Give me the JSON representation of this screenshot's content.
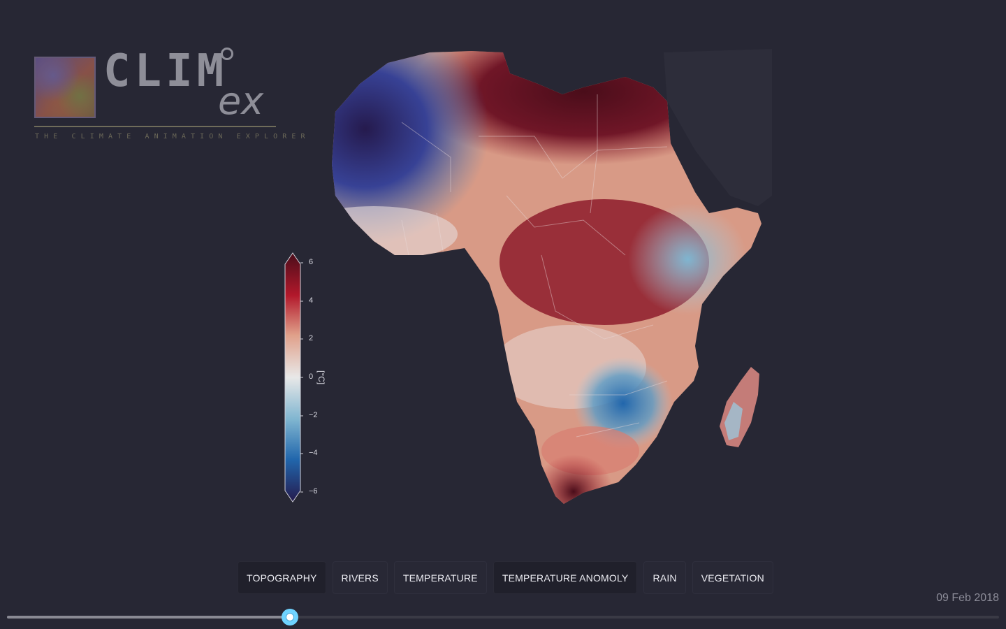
{
  "logo": {
    "main": "CLIM",
    "suffix": "ex",
    "tagline": "THE CLIMATE ANIMATION EXPLORER"
  },
  "map": {
    "region": "Africa",
    "variable": "temperature anomaly"
  },
  "colorbar": {
    "unit": "[°C]",
    "min": -6,
    "max": 6,
    "ticks": [
      "6",
      "4",
      "2",
      "0",
      "−2",
      "−4",
      "−6"
    ],
    "colors": {
      "max": "#4a0d1a",
      "warm": "#b2182b",
      "light_warm": "#e0a08a",
      "neutral": "#e8e8e8",
      "light_cool": "#7fb5d0",
      "cool": "#2166ac",
      "min": "#251a4d"
    }
  },
  "layers": [
    {
      "label": "TOPOGRAPHY",
      "active": true
    },
    {
      "label": "RIVERS",
      "active": false
    },
    {
      "label": "TEMPERATURE",
      "active": false
    },
    {
      "label": "TEMPERATURE ANOMOLY",
      "active": true
    },
    {
      "label": "RAIN",
      "active": false
    },
    {
      "label": "VEGETATION",
      "active": false
    }
  ],
  "timeline": {
    "date": "09 Feb 2018",
    "progress": 0.285
  },
  "colors": {
    "background": "#272734",
    "slider_thumb": "#6fd3ff"
  }
}
